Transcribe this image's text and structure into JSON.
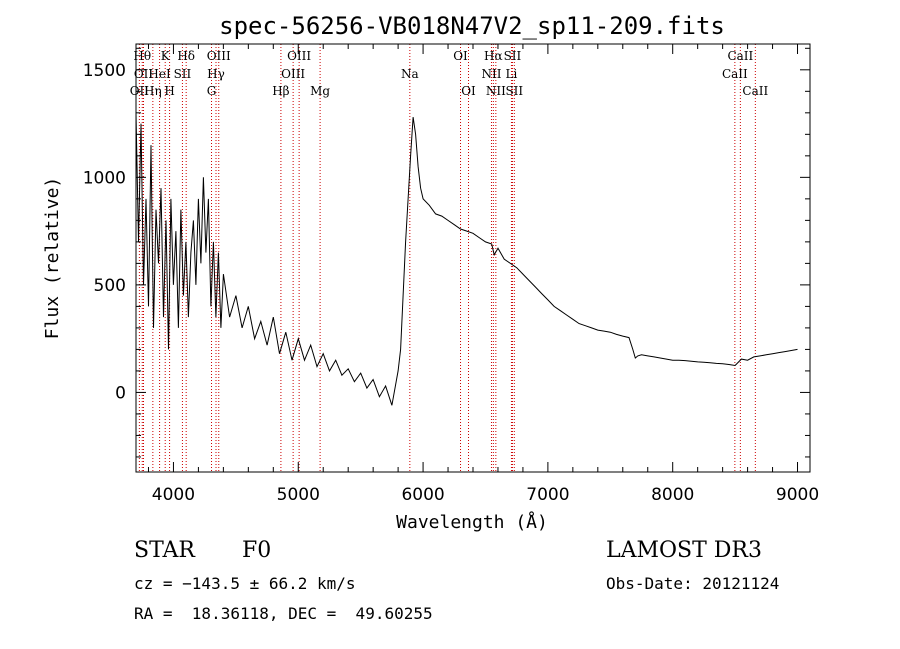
{
  "chart_data": {
    "type": "line",
    "title": "spec-56256-VB018N47V2_sp11-209.fits",
    "xlabel": "Wavelength (Å)",
    "ylabel": "Flux (relative)",
    "xlim": [
      3700,
      9100
    ],
    "ylim": [
      -370,
      1620
    ],
    "x_ticks": [
      4000,
      5000,
      6000,
      7000,
      8000,
      9000
    ],
    "y_ticks": [
      0,
      500,
      1000,
      1500
    ],
    "series": [
      {
        "name": "flux",
        "x": [
          3700,
          3720,
          3740,
          3760,
          3780,
          3800,
          3820,
          3840,
          3860,
          3880,
          3900,
          3920,
          3940,
          3960,
          3980,
          4000,
          4020,
          4040,
          4060,
          4080,
          4100,
          4120,
          4140,
          4160,
          4180,
          4200,
          4220,
          4240,
          4260,
          4280,
          4300,
          4320,
          4340,
          4360,
          4380,
          4400,
          4450,
          4500,
          4550,
          4600,
          4650,
          4700,
          4750,
          4800,
          4850,
          4900,
          4950,
          5000,
          5050,
          5100,
          5150,
          5200,
          5250,
          5300,
          5350,
          5400,
          5450,
          5500,
          5550,
          5600,
          5650,
          5700,
          5750,
          5800,
          5820,
          5840,
          5860,
          5880,
          5900,
          5920,
          5940,
          5960,
          5980,
          6000,
          6050,
          6100,
          6150,
          6200,
          6250,
          6300,
          6350,
          6400,
          6450,
          6500,
          6550,
          6570,
          6600,
          6650,
          6700,
          6750,
          6800,
          6850,
          6900,
          6950,
          7000,
          7050,
          7100,
          7150,
          7200,
          7250,
          7300,
          7350,
          7400,
          7450,
          7500,
          7550,
          7600,
          7650,
          7680,
          7700,
          7720,
          7750,
          7800,
          7850,
          7900,
          7950,
          8000,
          8050,
          8100,
          8150,
          8200,
          8250,
          8300,
          8350,
          8400,
          8450,
          8500,
          8550,
          8600,
          8650,
          8700,
          8750,
          8800,
          8850,
          8900,
          8950,
          9000
        ],
        "y": [
          1300,
          700,
          1250,
          500,
          900,
          400,
          1150,
          300,
          850,
          600,
          950,
          350,
          800,
          200,
          900,
          500,
          750,
          300,
          850,
          450,
          700,
          350,
          650,
          800,
          500,
          900,
          600,
          1000,
          650,
          900,
          400,
          700,
          350,
          650,
          300,
          550,
          350,
          450,
          300,
          400,
          250,
          330,
          220,
          350,
          180,
          280,
          150,
          250,
          150,
          220,
          120,
          180,
          100,
          150,
          80,
          110,
          50,
          90,
          20,
          60,
          -20,
          30,
          -60,
          100,
          200,
          450,
          700,
          900,
          1100,
          1280,
          1200,
          1050,
          950,
          900,
          870,
          830,
          820,
          800,
          780,
          760,
          750,
          740,
          720,
          700,
          690,
          640,
          670,
          620,
          600,
          580,
          550,
          520,
          490,
          460,
          430,
          400,
          380,
          360,
          340,
          320,
          310,
          300,
          290,
          285,
          280,
          270,
          262,
          255,
          200,
          160,
          170,
          175,
          170,
          165,
          160,
          155,
          150,
          150,
          148,
          145,
          142,
          140,
          138,
          135,
          133,
          130,
          125,
          155,
          150,
          165,
          170,
          175,
          180,
          185,
          190,
          195,
          200
        ]
      }
    ],
    "line_markers": [
      {
        "name": "OII",
        "x": 3727,
        "row": 2
      },
      {
        "name": "Hθ",
        "x": 3750,
        "row": 0
      },
      {
        "name": "OII",
        "x": 3760,
        "row": 1
      },
      {
        "name": "Hη",
        "x": 3835,
        "row": 2
      },
      {
        "name": "HeI",
        "x": 3889,
        "row": 1
      },
      {
        "name": "K",
        "x": 3934,
        "row": 0
      },
      {
        "name": "H",
        "x": 3969,
        "row": 2
      },
      {
        "name": "SII",
        "x": 4072,
        "row": 1
      },
      {
        "name": "Hδ",
        "x": 4102,
        "row": 0
      },
      {
        "name": "G",
        "x": 4305,
        "row": 2
      },
      {
        "name": "Hγ",
        "x": 4341,
        "row": 1
      },
      {
        "name": "OIII",
        "x": 4363,
        "row": 0
      },
      {
        "name": "Hβ",
        "x": 4861,
        "row": 2
      },
      {
        "name": "OIII",
        "x": 4959,
        "row": 1
      },
      {
        "name": "OIII",
        "x": 5007,
        "row": 0
      },
      {
        "name": "Mg",
        "x": 5175,
        "row": 2
      },
      {
        "name": "Na",
        "x": 5894,
        "row": 1
      },
      {
        "name": "OI",
        "x": 6300,
        "row": 0
      },
      {
        "name": "OI",
        "x": 6364,
        "row": 2
      },
      {
        "name": "NII",
        "x": 6548,
        "row": 1
      },
      {
        "name": "Hα",
        "x": 6563,
        "row": 0
      },
      {
        "name": "NII",
        "x": 6583,
        "row": 2
      },
      {
        "name": "Li",
        "x": 6708,
        "row": 1
      },
      {
        "name": "SII",
        "x": 6716,
        "row": 0
      },
      {
        "name": "SII",
        "x": 6731,
        "row": 2
      },
      {
        "name": "CaII",
        "x": 8498,
        "row": 1
      },
      {
        "name": "CaII",
        "x": 8542,
        "row": 0
      },
      {
        "name": "CaII",
        "x": 8662,
        "row": 2
      }
    ]
  },
  "info": {
    "class": "STAR",
    "subclass": "F0",
    "survey": "LAMOST DR3",
    "cz": "cz = −143.5 ± 66.2 km/s",
    "obs_date": "Obs-Date: 20121124",
    "coords": "RA =  18.36118, DEC =  49.60255"
  },
  "colors": {
    "marker_line": "#cc0000",
    "spectrum": "#000000"
  }
}
